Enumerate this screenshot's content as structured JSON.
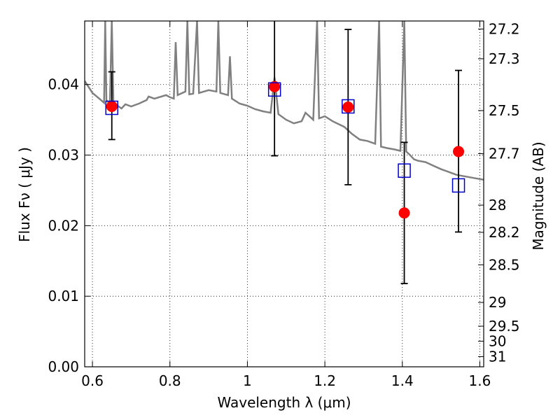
{
  "chart_data": {
    "type": "scatter",
    "title": "",
    "xlabel": "Wavelength  λ (μm)",
    "ylabel": "Flux  Fν  ( μJy )",
    "y2label": "Magnitude (AB)",
    "xlim": [
      0.58,
      1.61
    ],
    "ylim": [
      0.0,
      0.049
    ],
    "grid": true,
    "x_ticks": [
      0.6,
      0.8,
      1.0,
      1.2,
      1.4,
      1.6
    ],
    "x_tick_labels": [
      "0.6",
      "0.8",
      "1",
      "1.2",
      "1.4",
      "1.6"
    ],
    "y_ticks": [
      0.0,
      0.01,
      0.02,
      0.03,
      0.04
    ],
    "y_tick_labels": [
      "0.00",
      "0.01",
      "0.02",
      "0.03",
      "0.04"
    ],
    "mag_ticks": [
      27.2,
      27.3,
      27.5,
      27.7,
      28,
      28.2,
      28.5,
      29,
      29.5,
      30,
      31
    ],
    "mag_tick_labels": [
      "27.2",
      "27.3",
      "27.5",
      "27.7",
      "28",
      "28.2",
      "28.5",
      "29",
      "29.5",
      "30",
      "31"
    ],
    "series": [
      {
        "kind": "model-spectrum",
        "color": "#808080",
        "points": [
          [
            0.58,
            0.0405
          ],
          [
            0.6,
            0.0388
          ],
          [
            0.62,
            0.0379
          ],
          [
            0.63,
            0.0374
          ],
          [
            0.633,
            0.049
          ],
          [
            0.636,
            0.0378
          ],
          [
            0.645,
            0.0372
          ],
          [
            0.65,
            0.049
          ],
          [
            0.654,
            0.0376
          ],
          [
            0.665,
            0.037
          ],
          [
            0.675,
            0.0366
          ],
          [
            0.685,
            0.0372
          ],
          [
            0.7,
            0.0369
          ],
          [
            0.72,
            0.0373
          ],
          [
            0.74,
            0.0378
          ],
          [
            0.745,
            0.0383
          ],
          [
            0.76,
            0.038
          ],
          [
            0.79,
            0.0385
          ],
          [
            0.8,
            0.0382
          ],
          [
            0.81,
            0.038
          ],
          [
            0.815,
            0.046
          ],
          [
            0.82,
            0.0385
          ],
          [
            0.84,
            0.039
          ],
          [
            0.845,
            0.049
          ],
          [
            0.85,
            0.0386
          ],
          [
            0.86,
            0.0387
          ],
          [
            0.87,
            0.049
          ],
          [
            0.875,
            0.0388
          ],
          [
            0.9,
            0.0392
          ],
          [
            0.92,
            0.039
          ],
          [
            0.925,
            0.049
          ],
          [
            0.93,
            0.0388
          ],
          [
            0.95,
            0.0385
          ],
          [
            0.955,
            0.044
          ],
          [
            0.96,
            0.038
          ],
          [
            0.98,
            0.0373
          ],
          [
            1.0,
            0.037
          ],
          [
            1.02,
            0.0365
          ],
          [
            1.04,
            0.0362
          ],
          [
            1.06,
            0.036
          ],
          [
            1.07,
            0.041
          ],
          [
            1.08,
            0.0358
          ],
          [
            1.1,
            0.035
          ],
          [
            1.12,
            0.0345
          ],
          [
            1.14,
            0.0348
          ],
          [
            1.15,
            0.036
          ],
          [
            1.16,
            0.0355
          ],
          [
            1.17,
            0.035
          ],
          [
            1.18,
            0.049
          ],
          [
            1.185,
            0.0352
          ],
          [
            1.2,
            0.0355
          ],
          [
            1.22,
            0.0348
          ],
          [
            1.25,
            0.034
          ],
          [
            1.27,
            0.033
          ],
          [
            1.29,
            0.0322
          ],
          [
            1.31,
            0.032
          ],
          [
            1.33,
            0.0316
          ],
          [
            1.34,
            0.049
          ],
          [
            1.345,
            0.0312
          ],
          [
            1.36,
            0.031
          ],
          [
            1.38,
            0.0308
          ],
          [
            1.395,
            0.0306
          ],
          [
            1.405,
            0.049
          ],
          [
            1.41,
            0.0305
          ],
          [
            1.42,
            0.03
          ],
          [
            1.43,
            0.0294
          ],
          [
            1.44,
            0.0292
          ],
          [
            1.46,
            0.029
          ],
          [
            1.48,
            0.0285
          ],
          [
            1.5,
            0.028
          ],
          [
            1.52,
            0.0276
          ],
          [
            1.54,
            0.0272
          ],
          [
            1.56,
            0.027
          ],
          [
            1.58,
            0.0268
          ],
          [
            1.6,
            0.0266
          ],
          [
            1.61,
            0.0265
          ]
        ]
      },
      {
        "kind": "model-photometry",
        "marker": "open-square",
        "color": "#0000cc",
        "points": [
          [
            0.65,
            0.0367
          ],
          [
            1.07,
            0.0393
          ],
          [
            1.26,
            0.0369
          ],
          [
            1.405,
            0.0278
          ],
          [
            1.545,
            0.0257
          ]
        ]
      },
      {
        "kind": "observed-photometry",
        "marker": "filled-circle",
        "color": "#ff0000",
        "points": [
          {
            "x": 0.65,
            "y": 0.0369,
            "err_low": 0.0322,
            "err_high": 0.0418
          },
          {
            "x": 1.07,
            "y": 0.0397,
            "err_low": 0.0299,
            "err_high": 0.049
          },
          {
            "x": 1.26,
            "y": 0.0368,
            "err_low": 0.0258,
            "err_high": 0.0478
          },
          {
            "x": 1.405,
            "y": 0.0218,
            "err_low": 0.0118,
            "err_high": 0.0318
          },
          {
            "x": 1.545,
            "y": 0.0305,
            "err_low": 0.0191,
            "err_high": 0.042
          }
        ]
      }
    ]
  }
}
